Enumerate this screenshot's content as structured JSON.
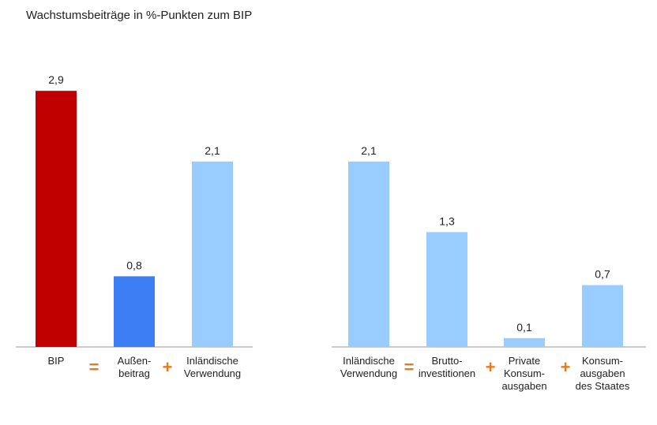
{
  "title": "Wachstumsbeiträge in %-Punkten zum BIP",
  "colors": {
    "bip": "#c00000",
    "aussen": "#3d7ef5",
    "light": "#99ccff",
    "operator": "#e87a1e",
    "axis": "#9a9a9a"
  },
  "chart_data": [
    {
      "type": "bar",
      "categories": [
        "BIP",
        "Außen-\nbeitrag",
        "Inländische\nVerwendung"
      ],
      "values": [
        2.9,
        0.8,
        2.1
      ],
      "value_labels": [
        "2,9",
        "0,8",
        "2,1"
      ],
      "bar_colors": [
        "bip",
        "aussen",
        "light"
      ],
      "operators": [
        "=",
        "+"
      ],
      "ylim": [
        0,
        3
      ],
      "grid": false,
      "legend": "none"
    },
    {
      "type": "bar",
      "categories": [
        "Inländische\nVerwendung",
        "Brutto-\ninvestitionen",
        "Private\nKonsum-\nausgaben",
        "Konsum-\nausgaben\ndes Staates"
      ],
      "values": [
        2.1,
        1.3,
        0.1,
        0.7
      ],
      "value_labels": [
        "2,1",
        "1,3",
        "0,1",
        "0,7"
      ],
      "bar_colors": [
        "light",
        "light",
        "light",
        "light"
      ],
      "operators": [
        "=",
        "+",
        "+"
      ],
      "ylim": [
        0,
        3
      ],
      "grid": false,
      "legend": "none"
    }
  ]
}
